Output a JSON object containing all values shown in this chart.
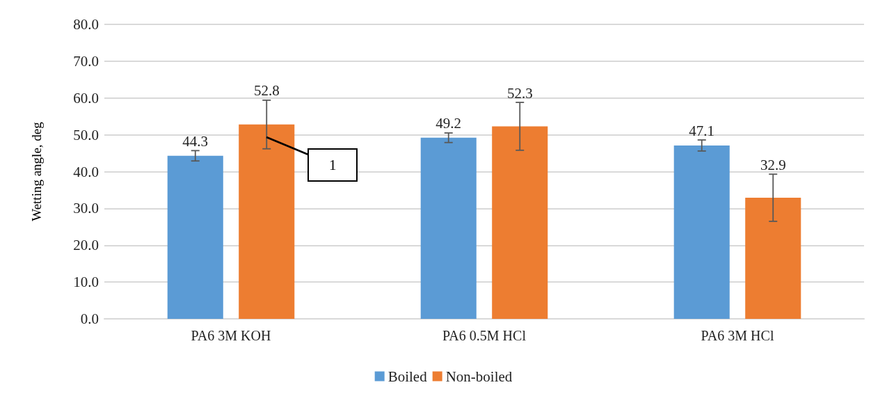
{
  "chart_data": {
    "type": "bar",
    "ylabel": "Wetting angle, deg",
    "categories": [
      "PA6 3M KOH",
      "PA6 0.5M HCl",
      "PA6 3M HCl"
    ],
    "series": [
      {
        "name": "Boiled",
        "color": "#5b9bd5",
        "values": [
          44.3,
          49.2,
          47.1
        ],
        "errors": [
          1.4,
          1.3,
          1.5
        ]
      },
      {
        "name": "Non-boiled",
        "color": "#ed7d31",
        "values": [
          52.8,
          52.3,
          32.9
        ],
        "errors": [
          6.6,
          6.5,
          6.4
        ]
      }
    ],
    "ylim": [
      0,
      80
    ],
    "yticks": [
      {
        "value": 0,
        "label": "0.0"
      },
      {
        "value": 10,
        "label": "10.0"
      },
      {
        "value": 20,
        "label": "20.0"
      },
      {
        "value": 30,
        "label": "30.0"
      },
      {
        "value": 40,
        "label": "40.0"
      },
      {
        "value": 50,
        "label": "50.0"
      },
      {
        "value": 60,
        "label": "60.0"
      },
      {
        "value": 70,
        "label": "70.0"
      },
      {
        "value": 80,
        "label": "80.0"
      }
    ],
    "grid": "y",
    "legend": "bottom",
    "data_labels": true,
    "annotations": [
      "1"
    ]
  }
}
